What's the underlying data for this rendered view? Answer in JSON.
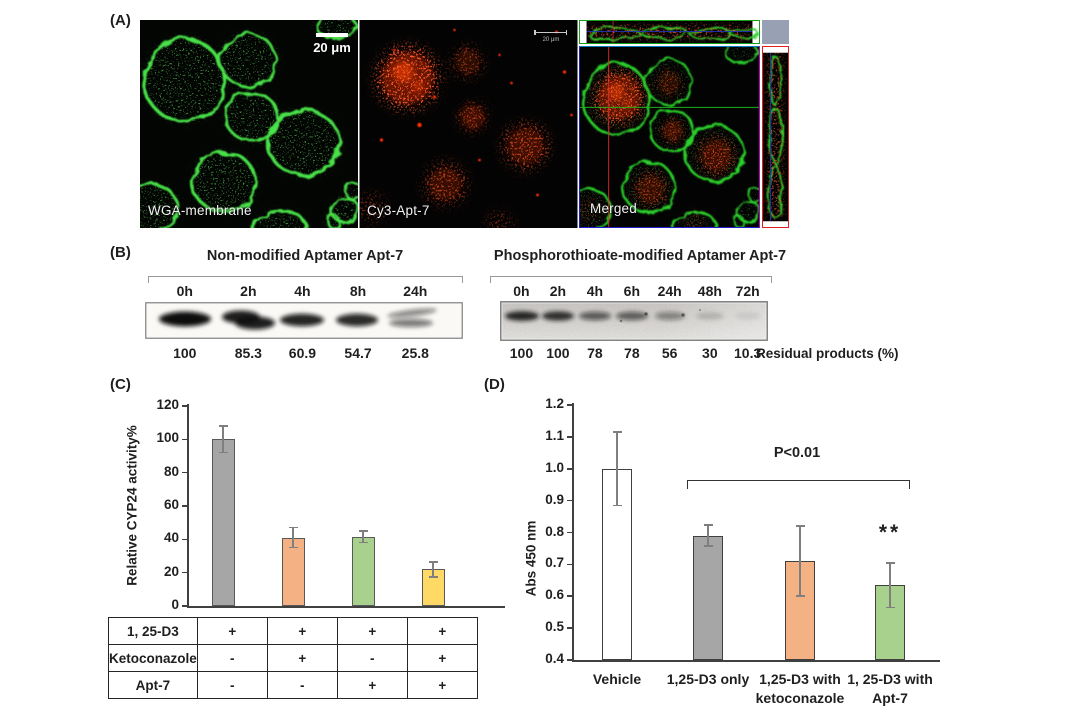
{
  "figure_labels": {
    "A": "(A)",
    "B": "(B)",
    "C": "(C)",
    "D": "(D)"
  },
  "panelA": {
    "captions": [
      "WGA-membrane",
      "Cy3-Apt-7",
      "Merged"
    ],
    "scalebar_wga": "20 μm",
    "scalebar_cy3": "20 μm"
  },
  "panelB": {
    "left_gel": {
      "title": "Non-modified Aptamer Apt-7",
      "lanes": [
        "0h",
        "2h",
        "4h",
        "8h",
        "24h"
      ],
      "values": [
        "100",
        "85.3",
        "60.9",
        "54.7",
        "25.8"
      ]
    },
    "right_gel": {
      "title": "Phosphorothioate-modified Aptamer Apt-7",
      "lanes": [
        "0h",
        "2h",
        "4h",
        "6h",
        "24h",
        "48h",
        "72h"
      ],
      "values": [
        "100",
        "100",
        "78",
        "78",
        "56",
        "30",
        "10.3"
      ],
      "note": "Residual products (%)"
    }
  },
  "chart_data": [
    {
      "id": "C",
      "type": "bar",
      "ylabel": "Relative CYP24 activity%",
      "ylim": [
        0,
        120
      ],
      "ytick_step": 20,
      "yticks": [
        0,
        20,
        40,
        60,
        80,
        100,
        120
      ],
      "categories": [
        "1,25-D3",
        "1,25-D3 + Ketoconazole",
        "1,25-D3 + Apt-7",
        "1,25-D3 + Ketoconazole + Apt-7"
      ],
      "values": [
        100,
        41,
        41.5,
        22
      ],
      "errors": [
        8,
        6,
        3.5,
        4.5
      ],
      "bar_colors": [
        "#a6a6a6",
        "#f4b183",
        "#a9d18e",
        "#ffd966"
      ],
      "bar_border": "#595959",
      "grid": false,
      "condition_table": {
        "rows": [
          {
            "label": "1, 25-D3",
            "cells": [
              "+",
              "+",
              "+",
              "+"
            ]
          },
          {
            "label": "Ketoconazole",
            "cells": [
              "-",
              "+",
              "-",
              "+"
            ]
          },
          {
            "label": "Apt-7",
            "cells": [
              "-",
              "-",
              "+",
              "+"
            ]
          }
        ]
      }
    },
    {
      "id": "D",
      "type": "bar",
      "ylabel": "Abs 450 nm",
      "ylim": [
        0.4,
        1.2
      ],
      "ytick_step": 0.1,
      "yticks": [
        0.4,
        0.5,
        0.6,
        0.7,
        0.8,
        0.9,
        1.0,
        1.1,
        1.2
      ],
      "categories": [
        "Vehicle",
        "1,25-D3 only",
        "1,25-D3 with ketoconazole",
        "1, 25-D3 with Apt-7"
      ],
      "category_lines": [
        [
          "Vehicle"
        ],
        [
          "1,25-D3 only"
        ],
        [
          "1,25-D3 with",
          "ketoconazole"
        ],
        [
          "1, 25-D3 with",
          "Apt-7"
        ]
      ],
      "values": [
        1.0,
        0.79,
        0.71,
        0.635
      ],
      "errors": [
        0.115,
        0.033,
        0.11,
        0.07
      ],
      "bar_colors": [
        "#ffffff",
        "#a6a6a6",
        "#f4b183",
        "#a9d18e"
      ],
      "bar_border": "#404040",
      "grid": false,
      "significance": {
        "bracket_label": "P<0.01",
        "stars": "**"
      }
    }
  ]
}
